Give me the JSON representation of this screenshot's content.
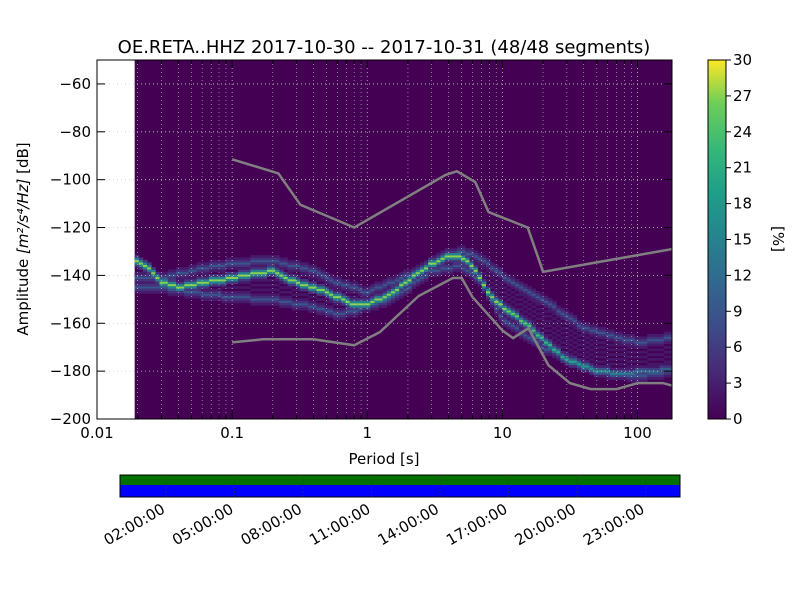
{
  "chart_data": {
    "type": "heatmap",
    "title": "OE.RETA..HHZ   2017-10-30 -- 2017-10-31  (48/48 segments)",
    "xlabel": "Period [s]",
    "ylabel_prefix": "Amplitude ",
    "ylabel_unit": "[m²/s⁴/Hz]",
    "ylabel_suffix": " [dB]",
    "x_scale": "log",
    "xlim": [
      0.01,
      180
    ],
    "ylim": [
      -200,
      -50
    ],
    "x_ticks": [
      {
        "value": 0.01,
        "label": "0.01"
      },
      {
        "value": 0.1,
        "label": "0.1"
      },
      {
        "value": 1,
        "label": "1"
      },
      {
        "value": 10,
        "label": "10"
      },
      {
        "value": 100,
        "label": "100"
      }
    ],
    "y_ticks": [
      {
        "value": -60,
        "label": "−60"
      },
      {
        "value": -80,
        "label": "−80"
      },
      {
        "value": -100,
        "label": "−100"
      },
      {
        "value": -120,
        "label": "−120"
      },
      {
        "value": -140,
        "label": "−140"
      },
      {
        "value": -160,
        "label": "−160"
      },
      {
        "value": -180,
        "label": "−180"
      },
      {
        "value": -200,
        "label": "−200"
      }
    ],
    "data_start_period": 0.019,
    "colorbar": {
      "label": "[%]",
      "range": [
        0,
        30
      ],
      "ticks": [
        {
          "value": 0,
          "label": "0"
        },
        {
          "value": 3,
          "label": "3"
        },
        {
          "value": 6,
          "label": "6"
        },
        {
          "value": 9,
          "label": "9"
        },
        {
          "value": 12,
          "label": "12"
        },
        {
          "value": 15,
          "label": "15"
        },
        {
          "value": 18,
          "label": "18"
        },
        {
          "value": 21,
          "label": "21"
        },
        {
          "value": 24,
          "label": "24"
        },
        {
          "value": 27,
          "label": "27"
        },
        {
          "value": 30,
          "label": "30"
        }
      ]
    },
    "primary_mode": {
      "name": "dominant PSD mode",
      "points": [
        [
          0.019,
          -133
        ],
        [
          0.025,
          -138
        ],
        [
          0.03,
          -143
        ],
        [
          0.04,
          -145
        ],
        [
          0.06,
          -143
        ],
        [
          0.1,
          -141
        ],
        [
          0.2,
          -138
        ],
        [
          0.3,
          -143
        ],
        [
          0.5,
          -147
        ],
        [
          0.8,
          -152
        ],
        [
          1.0,
          -152
        ],
        [
          1.5,
          -148
        ],
        [
          2.0,
          -142
        ],
        [
          3.0,
          -135
        ],
        [
          4.0,
          -132
        ],
        [
          5.0,
          -132
        ],
        [
          6.0,
          -136
        ],
        [
          8.0,
          -148
        ],
        [
          10.0,
          -153
        ],
        [
          15.0,
          -160
        ],
        [
          20.0,
          -167
        ],
        [
          30.0,
          -175
        ],
        [
          50.0,
          -180
        ],
        [
          80.0,
          -181
        ],
        [
          180.0,
          -179
        ]
      ]
    },
    "secondary_modes": [
      {
        "name": "upper band",
        "points": [
          [
            0.03,
            -141
          ],
          [
            0.06,
            -137
          ],
          [
            0.1,
            -135
          ],
          [
            0.2,
            -134
          ],
          [
            0.4,
            -138
          ],
          [
            0.6,
            -143
          ],
          [
            1.0,
            -147
          ],
          [
            2.0,
            -140
          ],
          [
            4.0,
            -131
          ],
          [
            5.0,
            -130
          ],
          [
            7.0,
            -133
          ],
          [
            10.0,
            -140
          ],
          [
            20.0,
            -150
          ],
          [
            40.0,
            -162
          ],
          [
            100.0,
            -168
          ],
          [
            180.0,
            -166
          ]
        ]
      },
      {
        "name": "lower band",
        "points": [
          [
            0.03,
            -145
          ],
          [
            0.05,
            -147
          ],
          [
            0.1,
            -149
          ],
          [
            0.2,
            -150
          ],
          [
            0.4,
            -153
          ],
          [
            0.6,
            -156
          ],
          [
            0.8,
            -155
          ],
          [
            1.0,
            -153
          ],
          [
            1.5,
            -150
          ],
          [
            3.0,
            -138
          ],
          [
            5.0,
            -136
          ],
          [
            7.0,
            -143
          ],
          [
            10.0,
            -158
          ],
          [
            20.0,
            -170
          ],
          [
            50.0,
            -180
          ],
          [
            100.0,
            -182
          ],
          [
            180.0,
            -180
          ]
        ]
      }
    ],
    "nhnm": {
      "name": "New High Noise Model",
      "points": [
        [
          0.1,
          -91.5
        ],
        [
          0.22,
          -97.4
        ],
        [
          0.32,
          -110.5
        ],
        [
          0.8,
          -120
        ],
        [
          3.8,
          -98
        ],
        [
          4.6,
          -96.5
        ],
        [
          6.3,
          -101
        ],
        [
          7.9,
          -113.5
        ],
        [
          15.4,
          -120
        ],
        [
          20,
          -138.5
        ],
        [
          180,
          -129
        ]
      ]
    },
    "nlnm": {
      "name": "New Low Noise Model",
      "points": [
        [
          0.1,
          -168
        ],
        [
          0.17,
          -166.7
        ],
        [
          0.4,
          -166.7
        ],
        [
          0.8,
          -169.2
        ],
        [
          1.24,
          -163.7
        ],
        [
          2.4,
          -148.6
        ],
        [
          4.3,
          -141.1
        ],
        [
          5.0,
          -141.1
        ],
        [
          6.0,
          -149
        ],
        [
          10.0,
          -163
        ],
        [
          12.0,
          -166.2
        ],
        [
          15.6,
          -162.1
        ],
        [
          21.9,
          -177.5
        ],
        [
          31.6,
          -185
        ],
        [
          45,
          -187.5
        ],
        [
          70,
          -187.5
        ],
        [
          100,
          -185
        ],
        [
          154,
          -185
        ],
        [
          180,
          -186
        ]
      ]
    }
  },
  "coverage": {
    "tick_labels": [
      "02:00:00",
      "05:00:00",
      "08:00:00",
      "11:00:00",
      "14:00:00",
      "17:00:00",
      "20:00:00",
      "23:00:00"
    ],
    "top_color": "#007000",
    "bottom_color": "#0000ff"
  },
  "colors": {
    "background": "#440154",
    "grid": "#cccccc",
    "noise_model": "#808080"
  }
}
